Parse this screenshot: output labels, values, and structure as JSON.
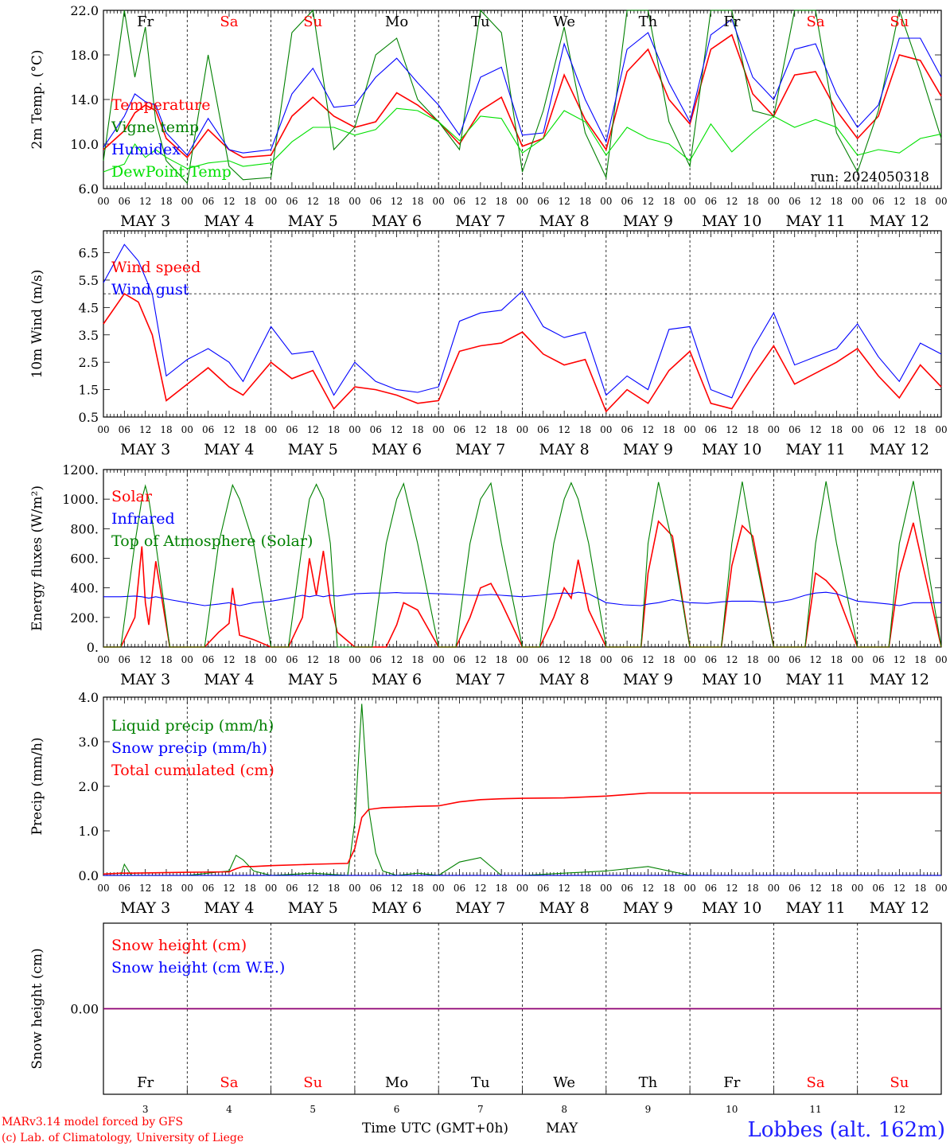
{
  "run_label": "run: 2024050318",
  "footer": {
    "model_line": "MARv3.14 model forced by GFS",
    "lab_line": "(c) Lab. of Climatology, University of Liege",
    "xaxis_title": "Time UTC (GMT+0h)",
    "month_label": "MAY",
    "station": "Lobbes (alt. 162m)"
  },
  "days": [
    {
      "abbr": "Fr",
      "num": "3",
      "weekend": false
    },
    {
      "abbr": "Sa",
      "num": "4",
      "weekend": true
    },
    {
      "abbr": "Su",
      "num": "5",
      "weekend": true
    },
    {
      "abbr": "Mo",
      "num": "6",
      "weekend": false
    },
    {
      "abbr": "Tu",
      "num": "7",
      "weekend": false
    },
    {
      "abbr": "We",
      "num": "8",
      "weekend": false
    },
    {
      "abbr": "Th",
      "num": "9",
      "weekend": false
    },
    {
      "abbr": "Fr",
      "num": "10",
      "weekend": false
    },
    {
      "abbr": "Sa",
      "num": "11",
      "weekend": true
    },
    {
      "abbr": "Su",
      "num": "12",
      "weekend": true
    }
  ],
  "hour_ticks": [
    "00",
    "06",
    "12",
    "18"
  ],
  "date_labels": [
    "MAY  3",
    "MAY  4",
    "MAY  5",
    "MAY  6",
    "MAY  7",
    "MAY  8",
    "MAY  9",
    "MAY 10",
    "MAY 11",
    "MAY 12"
  ],
  "colors": {
    "red": "#ff0000",
    "green": "#008000",
    "blue": "#0000ff",
    "lightgreen": "#00e000",
    "purple": "#800080",
    "station": "#2020ff"
  },
  "chart_data": [
    {
      "type": "line",
      "ylabel": "2m Temp. (°C)",
      "ylim": [
        6,
        22
      ],
      "yticks": [
        "6.0",
        "10.0",
        "14.0",
        "18.0",
        "22.0"
      ],
      "x_hours": [
        0,
        6,
        9,
        12,
        15,
        18,
        24,
        30,
        36,
        40,
        48,
        54,
        60,
        66,
        72,
        78,
        84,
        90,
        96,
        102,
        108,
        114,
        120,
        126,
        132,
        138,
        144,
        150,
        156,
        162,
        168,
        174,
        180,
        186,
        192,
        198,
        204,
        210,
        216,
        222,
        228,
        234,
        240
      ],
      "series": [
        {
          "name": "Temperature",
          "color": "red",
          "values": [
            9.5,
            11.2,
            12.8,
            13.5,
            13.0,
            10.5,
            8.8,
            11.3,
            9.5,
            8.8,
            9.0,
            12.5,
            14.2,
            12.5,
            11.5,
            12.0,
            14.6,
            13.5,
            12.0,
            10.0,
            13.0,
            14.2,
            9.8,
            10.5,
            16.2,
            12.2,
            9.5,
            16.5,
            18.5,
            14.0,
            11.8,
            18.5,
            19.8,
            14.5,
            12.5,
            16.2,
            16.5,
            13.0,
            10.5,
            12.5,
            18.0,
            17.5,
            14.3
          ]
        },
        {
          "name": "Vigne temp",
          "color": "green",
          "values": [
            8.5,
            22.0,
            16.0,
            20.5,
            12.0,
            8.5,
            6.5,
            18.0,
            8.0,
            6.8,
            7.0,
            20.0,
            22.0,
            9.5,
            11.5,
            18.0,
            19.5,
            14.0,
            12.0,
            9.5,
            22.0,
            20.0,
            7.5,
            13.0,
            20.5,
            11.0,
            7.0,
            22.0,
            22.0,
            12.0,
            8.0,
            22.0,
            22.0,
            13.0,
            12.5,
            22.0,
            22.0,
            11.0,
            7.5,
            13.0,
            22.0,
            16.5,
            10.5
          ]
        },
        {
          "name": "Humidex",
          "color": "blue",
          "values": [
            9.7,
            12.5,
            14.5,
            13.8,
            13.5,
            11.0,
            9.0,
            12.3,
            9.5,
            9.2,
            9.5,
            14.5,
            16.8,
            13.3,
            13.5,
            16.0,
            17.7,
            15.5,
            13.5,
            10.8,
            16.0,
            16.9,
            10.8,
            11.0,
            19.0,
            14.0,
            10.2,
            18.5,
            20.0,
            15.5,
            12.0,
            19.8,
            21.2,
            16.0,
            14.0,
            18.5,
            19.0,
            14.5,
            11.5,
            13.5,
            19.5,
            19.5,
            16.0
          ]
        },
        {
          "name": "DewPoint Temp",
          "color": "lightgreen",
          "values": [
            7.5,
            8.2,
            10.0,
            8.8,
            9.5,
            8.8,
            7.8,
            8.3,
            8.5,
            8.0,
            8.3,
            10.2,
            11.5,
            11.5,
            10.8,
            11.3,
            13.2,
            13.0,
            12.0,
            10.3,
            12.5,
            12.3,
            9.2,
            10.5,
            13.0,
            12.0,
            9.0,
            11.5,
            10.5,
            10.0,
            8.5,
            11.8,
            9.3,
            11.0,
            12.5,
            11.5,
            12.2,
            11.5,
            9.0,
            9.5,
            9.2,
            10.5,
            10.9
          ]
        }
      ],
      "annotations": [
        {
          "text": "run: 2024050318"
        }
      ]
    },
    {
      "type": "line",
      "ylabel": "10m Wind (m/s)",
      "ylim": [
        0.5,
        7.3
      ],
      "yticks": [
        "0.5",
        "1.5",
        "2.5",
        "3.5",
        "4.5",
        "5.5",
        "6.5"
      ],
      "reference_line": 5.0,
      "x_hours": [
        0,
        6,
        10,
        14,
        18,
        24,
        30,
        36,
        40,
        48,
        54,
        60,
        66,
        72,
        78,
        84,
        90,
        96,
        102,
        108,
        114,
        120,
        126,
        132,
        138,
        144,
        150,
        156,
        162,
        168,
        174,
        180,
        186,
        192,
        198,
        204,
        210,
        216,
        222,
        228,
        234,
        240
      ],
      "series": [
        {
          "name": "Wind speed",
          "color": "red",
          "values": [
            3.9,
            5.0,
            4.7,
            3.5,
            1.1,
            1.7,
            2.3,
            1.6,
            1.3,
            2.5,
            1.9,
            2.2,
            0.8,
            1.6,
            1.5,
            1.3,
            1.0,
            1.1,
            2.9,
            3.1,
            3.2,
            3.6,
            2.8,
            2.4,
            2.6,
            0.7,
            1.5,
            1.0,
            2.2,
            2.9,
            1.0,
            0.8,
            2.0,
            3.1,
            1.7,
            2.1,
            2.5,
            3.0,
            2.0,
            1.2,
            2.4,
            1.6
          ]
        },
        {
          "name": "Wind gust",
          "color": "blue",
          "values": [
            5.4,
            6.8,
            6.2,
            5.0,
            2.0,
            2.6,
            3.0,
            2.5,
            1.8,
            3.8,
            2.8,
            2.9,
            1.3,
            2.5,
            1.8,
            1.5,
            1.4,
            1.6,
            4.0,
            4.3,
            4.4,
            5.1,
            3.8,
            3.4,
            3.6,
            1.3,
            2.0,
            1.5,
            3.7,
            3.8,
            1.5,
            1.2,
            3.0,
            4.3,
            2.4,
            2.7,
            3.0,
            3.9,
            2.7,
            1.8,
            3.2,
            2.8
          ]
        }
      ]
    },
    {
      "type": "line",
      "ylabel": "Energy fluxes (W/m²)",
      "ylim": [
        0,
        1200
      ],
      "yticks": [
        "0.",
        "200.",
        "400.",
        "600.",
        "800.",
        "1000.",
        "1200."
      ],
      "x_hours": [
        0,
        5,
        9,
        11,
        12,
        13,
        15,
        19,
        24,
        29,
        33,
        36,
        37,
        39,
        43,
        48,
        53,
        57,
        59,
        61,
        63,
        65,
        67,
        72,
        77,
        81,
        84,
        86,
        90,
        96,
        101,
        105,
        108,
        111,
        114,
        120,
        125,
        129,
        132,
        134,
        136,
        139,
        144,
        149,
        154,
        156,
        159,
        163,
        168,
        173,
        177,
        180,
        183,
        186,
        192,
        197,
        201,
        204,
        207,
        210,
        216,
        221,
        225,
        228,
        232,
        240
      ],
      "series": [
        {
          "name": "Solar",
          "color": "red",
          "values": [
            0,
            0,
            200,
            680,
            300,
            150,
            580,
            0,
            0,
            0,
            100,
            160,
            400,
            80,
            50,
            0,
            0,
            200,
            600,
            350,
            650,
            300,
            100,
            0,
            0,
            0,
            150,
            300,
            250,
            0,
            0,
            200,
            400,
            430,
            300,
            0,
            0,
            200,
            400,
            330,
            590,
            250,
            0,
            0,
            0,
            500,
            850,
            750,
            0,
            0,
            0,
            550,
            820,
            750,
            0,
            0,
            0,
            500,
            450,
            370,
            0,
            0,
            0,
            500,
            840,
            0
          ]
        },
        {
          "name": "Infrared",
          "color": "blue",
          "values": [
            340,
            340,
            345,
            340,
            335,
            330,
            340,
            320,
            300,
            280,
            290,
            300,
            290,
            280,
            300,
            310,
            330,
            350,
            340,
            350,
            340,
            350,
            345,
            360,
            365,
            365,
            368,
            365,
            365,
            360,
            355,
            350,
            350,
            355,
            350,
            340,
            350,
            360,
            365,
            360,
            370,
            360,
            300,
            285,
            280,
            290,
            300,
            320,
            300,
            295,
            305,
            310,
            310,
            310,
            300,
            320,
            350,
            365,
            370,
            360,
            310,
            300,
            290,
            280,
            300,
            300
          ]
        },
        {
          "name": "Top of Atmosphere (Solar)",
          "color": "green",
          "values": [
            0,
            0,
            700,
            1000,
            1090,
            1000,
            700,
            0,
            0,
            0,
            700,
            1000,
            1095,
            1000,
            700,
            0,
            0,
            700,
            1000,
            1100,
            1000,
            700,
            0,
            0,
            0,
            700,
            1000,
            1105,
            700,
            0,
            0,
            700,
            1000,
            1108,
            700,
            0,
            0,
            700,
            1000,
            1110,
            1000,
            700,
            0,
            0,
            0,
            700,
            1115,
            700,
            0,
            0,
            0,
            700,
            1118,
            700,
            0,
            0,
            0,
            700,
            1120,
            700,
            0,
            0,
            0,
            700,
            1122,
            0
          ]
        }
      ]
    },
    {
      "type": "line",
      "ylabel": "Precip (mm/h)",
      "ylim": [
        0,
        4
      ],
      "yticks": [
        "0.0",
        "1.0",
        "2.0",
        "3.0",
        "4.0"
      ],
      "x_hours": [
        0,
        5,
        6,
        8,
        24,
        36,
        38,
        40,
        43,
        48,
        60,
        70,
        72,
        74,
        76,
        78,
        80,
        84,
        90,
        96,
        102,
        108,
        114,
        120,
        132,
        144,
        156,
        168,
        180,
        192,
        204,
        216,
        228,
        240
      ],
      "series": [
        {
          "name": "Liquid precip (mm/h)",
          "color": "green",
          "values": [
            0,
            0,
            0.25,
            0,
            0,
            0.1,
            0.45,
            0.35,
            0.1,
            0,
            0.05,
            0,
            1.2,
            3.85,
            1.5,
            0.5,
            0.1,
            0,
            0.05,
            0,
            0.3,
            0.4,
            0,
            0,
            0.05,
            0.1,
            0.2,
            0,
            0,
            0,
            0,
            0,
            0,
            0
          ]
        },
        {
          "name": "Snow precip (mm/h)",
          "color": "blue",
          "values": [
            0,
            0,
            0,
            0,
            0,
            0,
            0,
            0,
            0,
            0,
            0,
            0,
            0,
            0,
            0,
            0,
            0,
            0,
            0,
            0,
            0,
            0,
            0,
            0,
            0,
            0,
            0,
            0,
            0,
            0,
            0,
            0,
            0,
            0
          ]
        },
        {
          "name": "Total cumulated (cm)",
          "color": "red",
          "values": [
            0.03,
            0.05,
            0.05,
            0.05,
            0.07,
            0.08,
            0.15,
            0.2,
            0.2,
            0.22,
            0.25,
            0.27,
            0.6,
            1.3,
            1.48,
            1.5,
            1.52,
            1.53,
            1.55,
            1.56,
            1.65,
            1.7,
            1.72,
            1.73,
            1.74,
            1.78,
            1.85,
            1.85,
            1.85,
            1.85,
            1.85,
            1.85,
            1.85,
            1.85
          ]
        }
      ]
    },
    {
      "type": "line",
      "ylabel": "Snow height (cm)",
      "ylim": [
        -1,
        1
      ],
      "yticks": [
        "0.00"
      ],
      "x_hours": [
        0,
        240
      ],
      "series": [
        {
          "name": "Snow height (cm)",
          "color": "red",
          "values": [
            0,
            0
          ]
        },
        {
          "name": "Snow height (cm W.E.)",
          "color": "blue",
          "values": [
            0,
            0
          ]
        }
      ]
    }
  ]
}
